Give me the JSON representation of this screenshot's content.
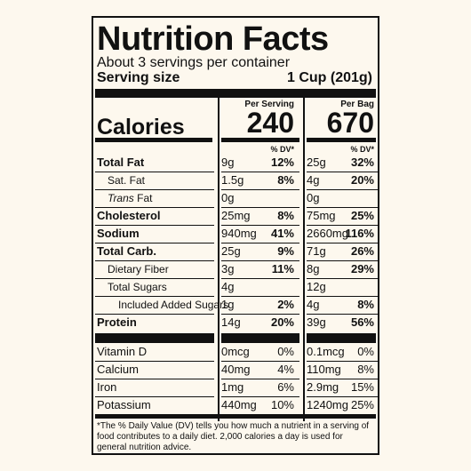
{
  "title": "Nutrition Facts",
  "servings_per_container": "About 3 servings per container",
  "serving_size_label": "Serving size",
  "serving_size_value": "1 Cup (201g)",
  "calories_label": "Calories",
  "per_serving_label": "Per Serving",
  "per_bag_label": "Per Bag",
  "calories_serving": "240",
  "calories_bag": "670",
  "dv_label": "% DV*",
  "nutrients": [
    {
      "name": "Total Fat",
      "bold": true,
      "indent": 0,
      "serving_amount": "9g",
      "serving_dv": "12%",
      "bag_amount": "25g",
      "bag_dv": "32%"
    },
    {
      "name": "Sat. Fat",
      "bold": false,
      "indent": 1,
      "serving_amount": "1.5g",
      "serving_dv": "8%",
      "bag_amount": "4g",
      "bag_dv": "20%"
    },
    {
      "name": "Trans Fat",
      "bold": false,
      "indent": 1,
      "serving_amount": "0g",
      "serving_dv": "",
      "bag_amount": "0g",
      "bag_dv": ""
    },
    {
      "name": "Cholesterol",
      "bold": true,
      "indent": 0,
      "serving_amount": "25mg",
      "serving_dv": "8%",
      "bag_amount": "75mg",
      "bag_dv": "25%"
    },
    {
      "name": "Sodium",
      "bold": true,
      "indent": 0,
      "serving_amount": "940mg",
      "serving_dv": "41%",
      "bag_amount": "2660mg",
      "bag_dv": "116%"
    },
    {
      "name": "Total Carb.",
      "bold": true,
      "indent": 0,
      "serving_amount": "25g",
      "serving_dv": "9%",
      "bag_amount": "71g",
      "bag_dv": "26%"
    },
    {
      "name": "Dietary Fiber",
      "bold": false,
      "indent": 1,
      "serving_amount": "3g",
      "serving_dv": "11%",
      "bag_amount": "8g",
      "bag_dv": "29%"
    },
    {
      "name": "Total Sugars",
      "bold": false,
      "indent": 1,
      "serving_amount": "4g",
      "serving_dv": "",
      "bag_amount": "12g",
      "bag_dv": ""
    },
    {
      "name": "Included Added Sugars",
      "bold": false,
      "indent": 2,
      "serving_amount": "1g",
      "serving_dv": "2%",
      "bag_amount": "4g",
      "bag_dv": "8%"
    },
    {
      "name": "Protein",
      "bold": true,
      "indent": 0,
      "serving_amount": "14g",
      "serving_dv": "20%",
      "bag_amount": "39g",
      "bag_dv": "56%"
    }
  ],
  "vitamins": [
    {
      "name": "Vitamin D",
      "serving_amount": "0mcg",
      "serving_dv": "0%",
      "bag_amount": "0.1mcg",
      "bag_dv": "0%"
    },
    {
      "name": "Calcium",
      "serving_amount": "40mg",
      "serving_dv": "4%",
      "bag_amount": "110mg",
      "bag_dv": "8%"
    },
    {
      "name": "Iron",
      "serving_amount": "1mg",
      "serving_dv": "6%",
      "bag_amount": "2.9mg",
      "bag_dv": "15%"
    },
    {
      "name": "Potassium",
      "serving_amount": "440mg",
      "serving_dv": "10%",
      "bag_amount": "1240mg",
      "bag_dv": "25%"
    }
  ],
  "footnote": "*The % Daily Value (DV) tells you how much a nutrient in a serving of food contributes to a daily diet. 2,000 calories a day is used for general nutrition advice."
}
